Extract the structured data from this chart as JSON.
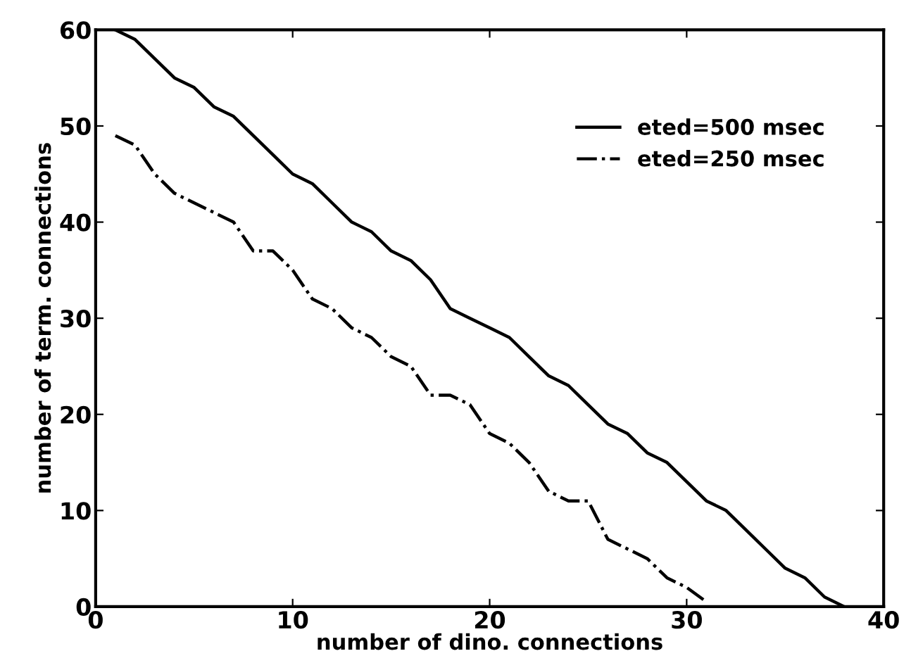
{
  "chart_data": {
    "type": "line",
    "xlabel": "number of dino. connections",
    "ylabel": "number of term. connections",
    "xlim": [
      0,
      40
    ],
    "xticks": [
      0,
      10,
      20,
      30,
      40
    ],
    "ylim": [
      0,
      60
    ],
    "yticks": [
      0,
      10,
      20,
      30,
      40,
      50,
      60
    ],
    "legend": "top right",
    "grid": false,
    "marker": "none",
    "series": [
      {
        "name": "eted=500 msec",
        "color": "#000000",
        "line_style": "solid",
        "x": [
          1,
          2,
          3,
          4,
          5,
          6,
          7,
          8,
          9,
          10,
          11,
          12,
          13,
          14,
          15,
          16,
          17,
          18,
          19,
          20,
          21,
          22,
          23,
          24,
          25,
          26,
          27,
          28,
          29,
          30,
          31,
          32,
          33,
          34,
          35,
          36,
          37,
          38
        ],
        "values": [
          60,
          59,
          57,
          55,
          54,
          52,
          51,
          49,
          47,
          45,
          44,
          42,
          40,
          39,
          37,
          36,
          34,
          31,
          30,
          29,
          28,
          26,
          24,
          23,
          21,
          19,
          18,
          16,
          15,
          13,
          11,
          10,
          8,
          6,
          4,
          3,
          1,
          0
        ]
      },
      {
        "name": "eted=250 msec",
        "color": "#000000",
        "line_style": "dashdot",
        "x": [
          1,
          2,
          3,
          4,
          5,
          6,
          7,
          8,
          9,
          10,
          11,
          12,
          13,
          14,
          15,
          16,
          17,
          18,
          19,
          20,
          21,
          22,
          23,
          24,
          25,
          26,
          27,
          28,
          29,
          30,
          31
        ],
        "values": [
          49,
          48,
          45,
          43,
          42,
          41,
          40,
          37,
          37,
          35,
          32,
          31,
          29,
          28,
          26,
          25,
          22,
          22,
          21,
          18,
          17,
          15,
          12,
          11,
          11,
          7,
          6,
          5,
          3,
          2,
          0.5
        ]
      }
    ]
  }
}
